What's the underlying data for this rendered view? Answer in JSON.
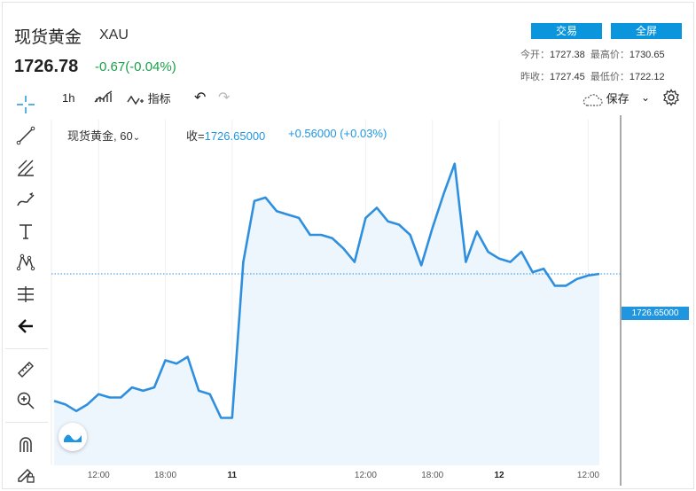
{
  "header": {
    "title": "现货黄金",
    "symbol": "XAU",
    "price": "1726.78",
    "change": "-0.67(-0.04%)",
    "trade_button": "交易",
    "fullscreen_button": "全屏",
    "stats": {
      "open_label": "今开：",
      "open_value": "1727.38",
      "high_label": "最高价：",
      "high_value": "1730.65",
      "prev_close_label": "昨收：",
      "prev_close_value": "1727.45",
      "low_label": "最低价：",
      "low_value": "1722.12"
    }
  },
  "toolbar": {
    "interval": "1h",
    "indicators_label": "指标",
    "save_label": "保存",
    "icons": [
      "candle-type-icon",
      "indicators-icon",
      "undo-icon",
      "redo-icon",
      "cloud-save-icon",
      "chevron-down-icon",
      "gear-icon"
    ]
  },
  "left_tools": [
    "crosshair-icon",
    "trend-line-icon",
    "fib-icon",
    "brush-icon",
    "text-icon",
    "pattern-icon",
    "measure-lines-icon",
    "back-arrow-icon",
    "ruler-icon",
    "zoom-in-icon",
    "magnet-icon",
    "lock-draw-icon"
  ],
  "legend": {
    "name": "现货黄金, 60",
    "close_label": "收=",
    "close_value": "1726.65000",
    "change": "+0.56000 (+0.03%)"
  },
  "price_tag": "1726.65000",
  "x_labels": [
    {
      "text": "12:00",
      "bold": false
    },
    {
      "text": "18:00",
      "bold": false
    },
    {
      "text": "11",
      "bold": true
    },
    {
      "text": "12:00",
      "bold": false
    },
    {
      "text": "18:00",
      "bold": false
    },
    {
      "text": "12",
      "bold": true
    },
    {
      "text": "12:00",
      "bold": false
    }
  ],
  "colors": {
    "line": "#2f8fdf",
    "fill": "#eef6fd",
    "accent": "#0a95dd",
    "up": "#1aa04a"
  },
  "chart_data": {
    "type": "area",
    "title": "现货黄金, 60",
    "x": [
      "10 08:00",
      "10 09:00",
      "10 10:00",
      "10 11:00",
      "10 12:00",
      "10 13:00",
      "10 14:00",
      "10 15:00",
      "10 16:00",
      "10 17:00",
      "10 18:00",
      "10 19:00",
      "10 20:00",
      "10 21:00",
      "10 22:00",
      "10 23:00",
      "11 00:00",
      "11 01:00",
      "11 02:00",
      "11 03:00",
      "11 04:00",
      "11 05:00",
      "11 06:00",
      "11 07:00",
      "11 08:00",
      "11 09:00",
      "11 10:00",
      "11 11:00",
      "11 12:00",
      "11 13:00",
      "11 14:00",
      "11 15:00",
      "11 16:00",
      "11 17:00",
      "11 18:00",
      "11 19:00",
      "11 20:00",
      "11 21:00",
      "11 22:00",
      "11 23:00",
      "12 00:00",
      "12 01:00",
      "12 02:00",
      "12 03:00",
      "12 04:00",
      "12 05:00",
      "12 06:00",
      "12 07:00",
      "12 08:00",
      "12 09:00"
    ],
    "values": [
      1722.9,
      1722.8,
      1722.6,
      1722.8,
      1723.1,
      1723.0,
      1723.0,
      1723.3,
      1723.2,
      1723.3,
      1724.1,
      1724.0,
      1724.2,
      1723.2,
      1723.1,
      1722.4,
      1722.4,
      1727.0,
      1728.8,
      1728.9,
      1728.5,
      1728.4,
      1728.3,
      1727.8,
      1727.8,
      1727.7,
      1727.4,
      1727.0,
      1728.3,
      1728.6,
      1728.2,
      1728.1,
      1727.8,
      1726.9,
      1728.0,
      1729.0,
      1729.9,
      1727.0,
      1727.9,
      1727.3,
      1727.1,
      1727.0,
      1727.3,
      1726.7,
      1726.8,
      1726.3,
      1726.3,
      1726.5,
      1726.6,
      1726.65
    ],
    "x_tick_labels": [
      "12:00",
      "18:00",
      "11",
      "12:00",
      "18:00",
      "12",
      "12:00"
    ],
    "current_value": 1726.65,
    "ylim": [
      1721.0,
      1731.2
    ],
    "grid": true,
    "legend": "top-left"
  }
}
